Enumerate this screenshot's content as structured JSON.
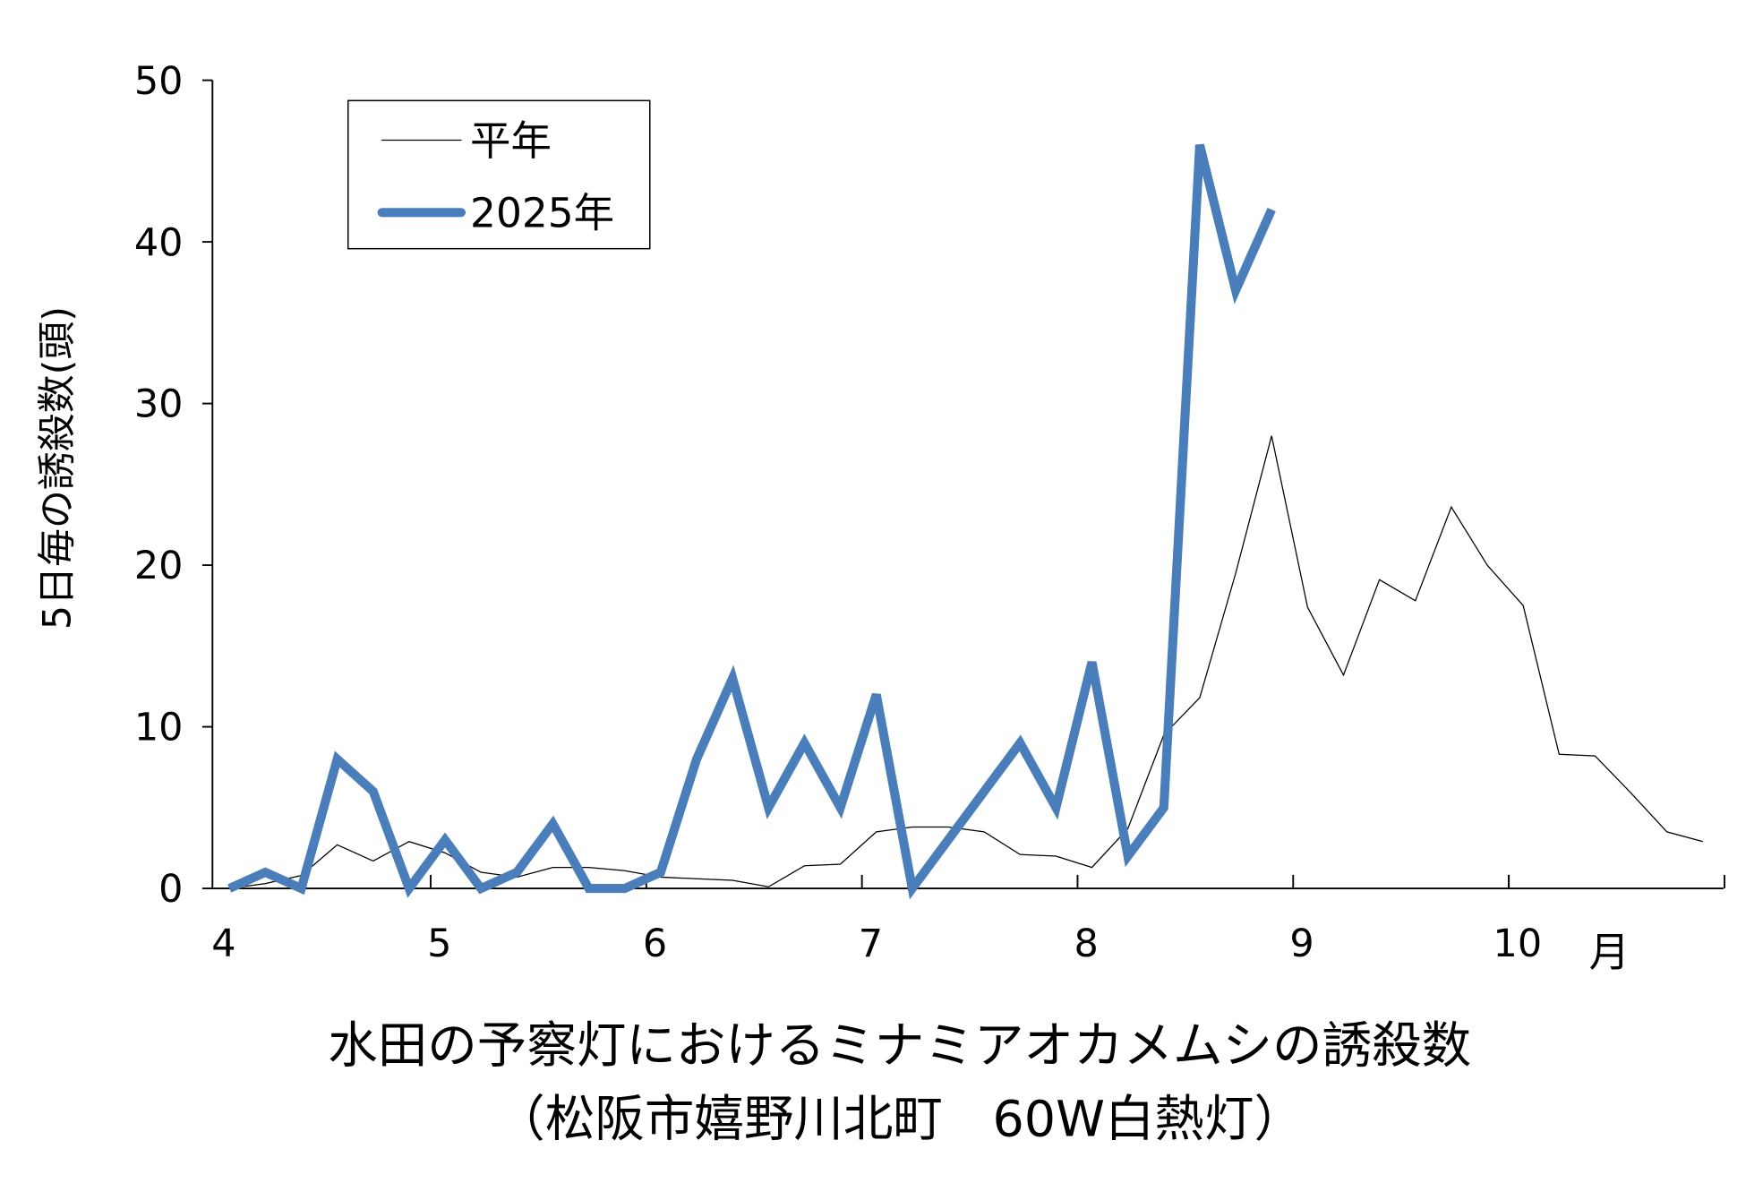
{
  "chart_data": {
    "type": "line",
    "title": "水田の予察灯におけるミナミアオカメムシの誘殺数",
    "subtitle": "（松阪市嬉野川北町　60W白熱灯）",
    "y_label": "5日毎の誘殺数(頭)",
    "x_unit": "月",
    "categories": [
      "4",
      null,
      null,
      null,
      null,
      null,
      "5",
      null,
      null,
      null,
      null,
      null,
      "6",
      null,
      null,
      null,
      null,
      null,
      "7",
      null,
      null,
      null,
      null,
      null,
      "8",
      null,
      null,
      null,
      null,
      null,
      "9",
      null,
      null,
      null,
      null,
      null,
      "10",
      null,
      null,
      null,
      null,
      null
    ],
    "series": [
      {
        "name": "平年",
        "color": "#000000",
        "values": [
          0,
          0.3,
          0.8,
          2.7,
          1.7,
          2.9,
          2.2,
          1.0,
          0.7,
          1.3,
          1.3,
          1.1,
          0.7,
          0.6,
          0.5,
          0.1,
          1.4,
          1.5,
          3.5,
          3.8,
          3.8,
          3.5,
          2.1,
          2.0,
          1.3,
          3.7,
          9.5,
          11.8,
          19.5,
          28,
          17.4,
          13.2,
          19.1,
          17.8,
          23.6,
          20,
          17.5,
          8.3,
          8.2,
          5.9,
          3.5,
          2.9
        ]
      },
      {
        "name": "2025年",
        "color": "#4a7ebb",
        "values": [
          0,
          1,
          0,
          8,
          6,
          0,
          3,
          0,
          1,
          4,
          0,
          0,
          1,
          8,
          13,
          5,
          9,
          5,
          12,
          0,
          3,
          6,
          9,
          5,
          14,
          2,
          5,
          46,
          37,
          42,
          null,
          null,
          null,
          null,
          null,
          null,
          null,
          null,
          null,
          null,
          null,
          null
        ]
      }
    ],
    "ylim": [
      0,
      50
    ],
    "yticks": [
      0,
      10,
      20,
      30,
      40,
      50
    ],
    "grid": false
  }
}
